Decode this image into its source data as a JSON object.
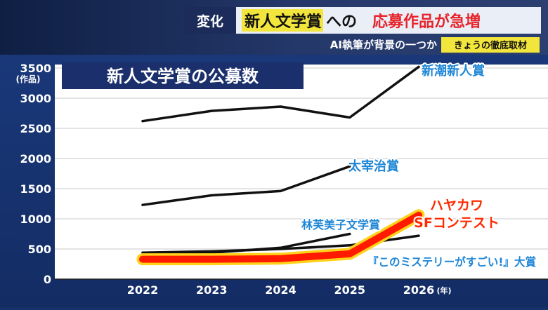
{
  "header": {
    "tag": "変化",
    "headline_a": "新人文学賞",
    "headline_b": "への",
    "headline_c": "応募作品が急増",
    "sub": "AI執筆が背景の一つか",
    "badge": "きょうの徹底取材"
  },
  "colors": {
    "background": "#16306a",
    "header_bg": "#1c2c5a",
    "plot_bg": "#ffffff",
    "yellow": "#f2e53c",
    "headline_red": "#e8232a",
    "label_blue": "#1e86d6",
    "title_box": "#1a2f6b",
    "highlight_red": "#ff1a00",
    "highlight_glow": "#ffd21a",
    "line_black": "#111111"
  },
  "chart_data": {
    "type": "line",
    "title": "新人文学賞の公募数",
    "y_unit": "(作品)",
    "x_unit": "(年)",
    "ylim": [
      0,
      3500
    ],
    "xlim": [
      2022,
      2026
    ],
    "yticks": [
      "3500",
      "3000",
      "2500",
      "2000",
      "1500",
      "1000",
      "500",
      "0"
    ],
    "x": [
      2022,
      2023,
      2024,
      2025,
      2026
    ],
    "xticks": [
      "2022",
      "2023",
      "2024",
      "2025",
      "2026"
    ],
    "grid": true,
    "series": [
      {
        "name": "新潮新人賞",
        "points": [
          [
            2022,
            2620
          ],
          [
            2023,
            2790
          ],
          [
            2024,
            2860
          ],
          [
            2025,
            2680
          ],
          [
            2026,
            3520
          ]
        ]
      },
      {
        "name": "太宰治賞",
        "points": [
          [
            2022,
            1230
          ],
          [
            2023,
            1390
          ],
          [
            2024,
            1460
          ],
          [
            2025,
            1870
          ]
        ]
      },
      {
        "name": "林芙美子文学賞",
        "points": [
          [
            2022,
            440
          ],
          [
            2023,
            440
          ],
          [
            2024,
            520
          ],
          [
            2025,
            750
          ]
        ]
      },
      {
        "name": "『このミステリーがすごい!』大賞",
        "points": [
          [
            2022,
            440
          ],
          [
            2023,
            460
          ],
          [
            2024,
            500
          ],
          [
            2025,
            560
          ],
          [
            2026,
            720
          ]
        ]
      },
      {
        "name_lines": [
          "ハヤカワ",
          "SFコンテスト"
        ],
        "highlight": true,
        "points": [
          [
            2022,
            330
          ],
          [
            2023,
            330
          ],
          [
            2024,
            340
          ],
          [
            2025,
            420
          ],
          [
            2026,
            1060
          ]
        ]
      }
    ]
  }
}
